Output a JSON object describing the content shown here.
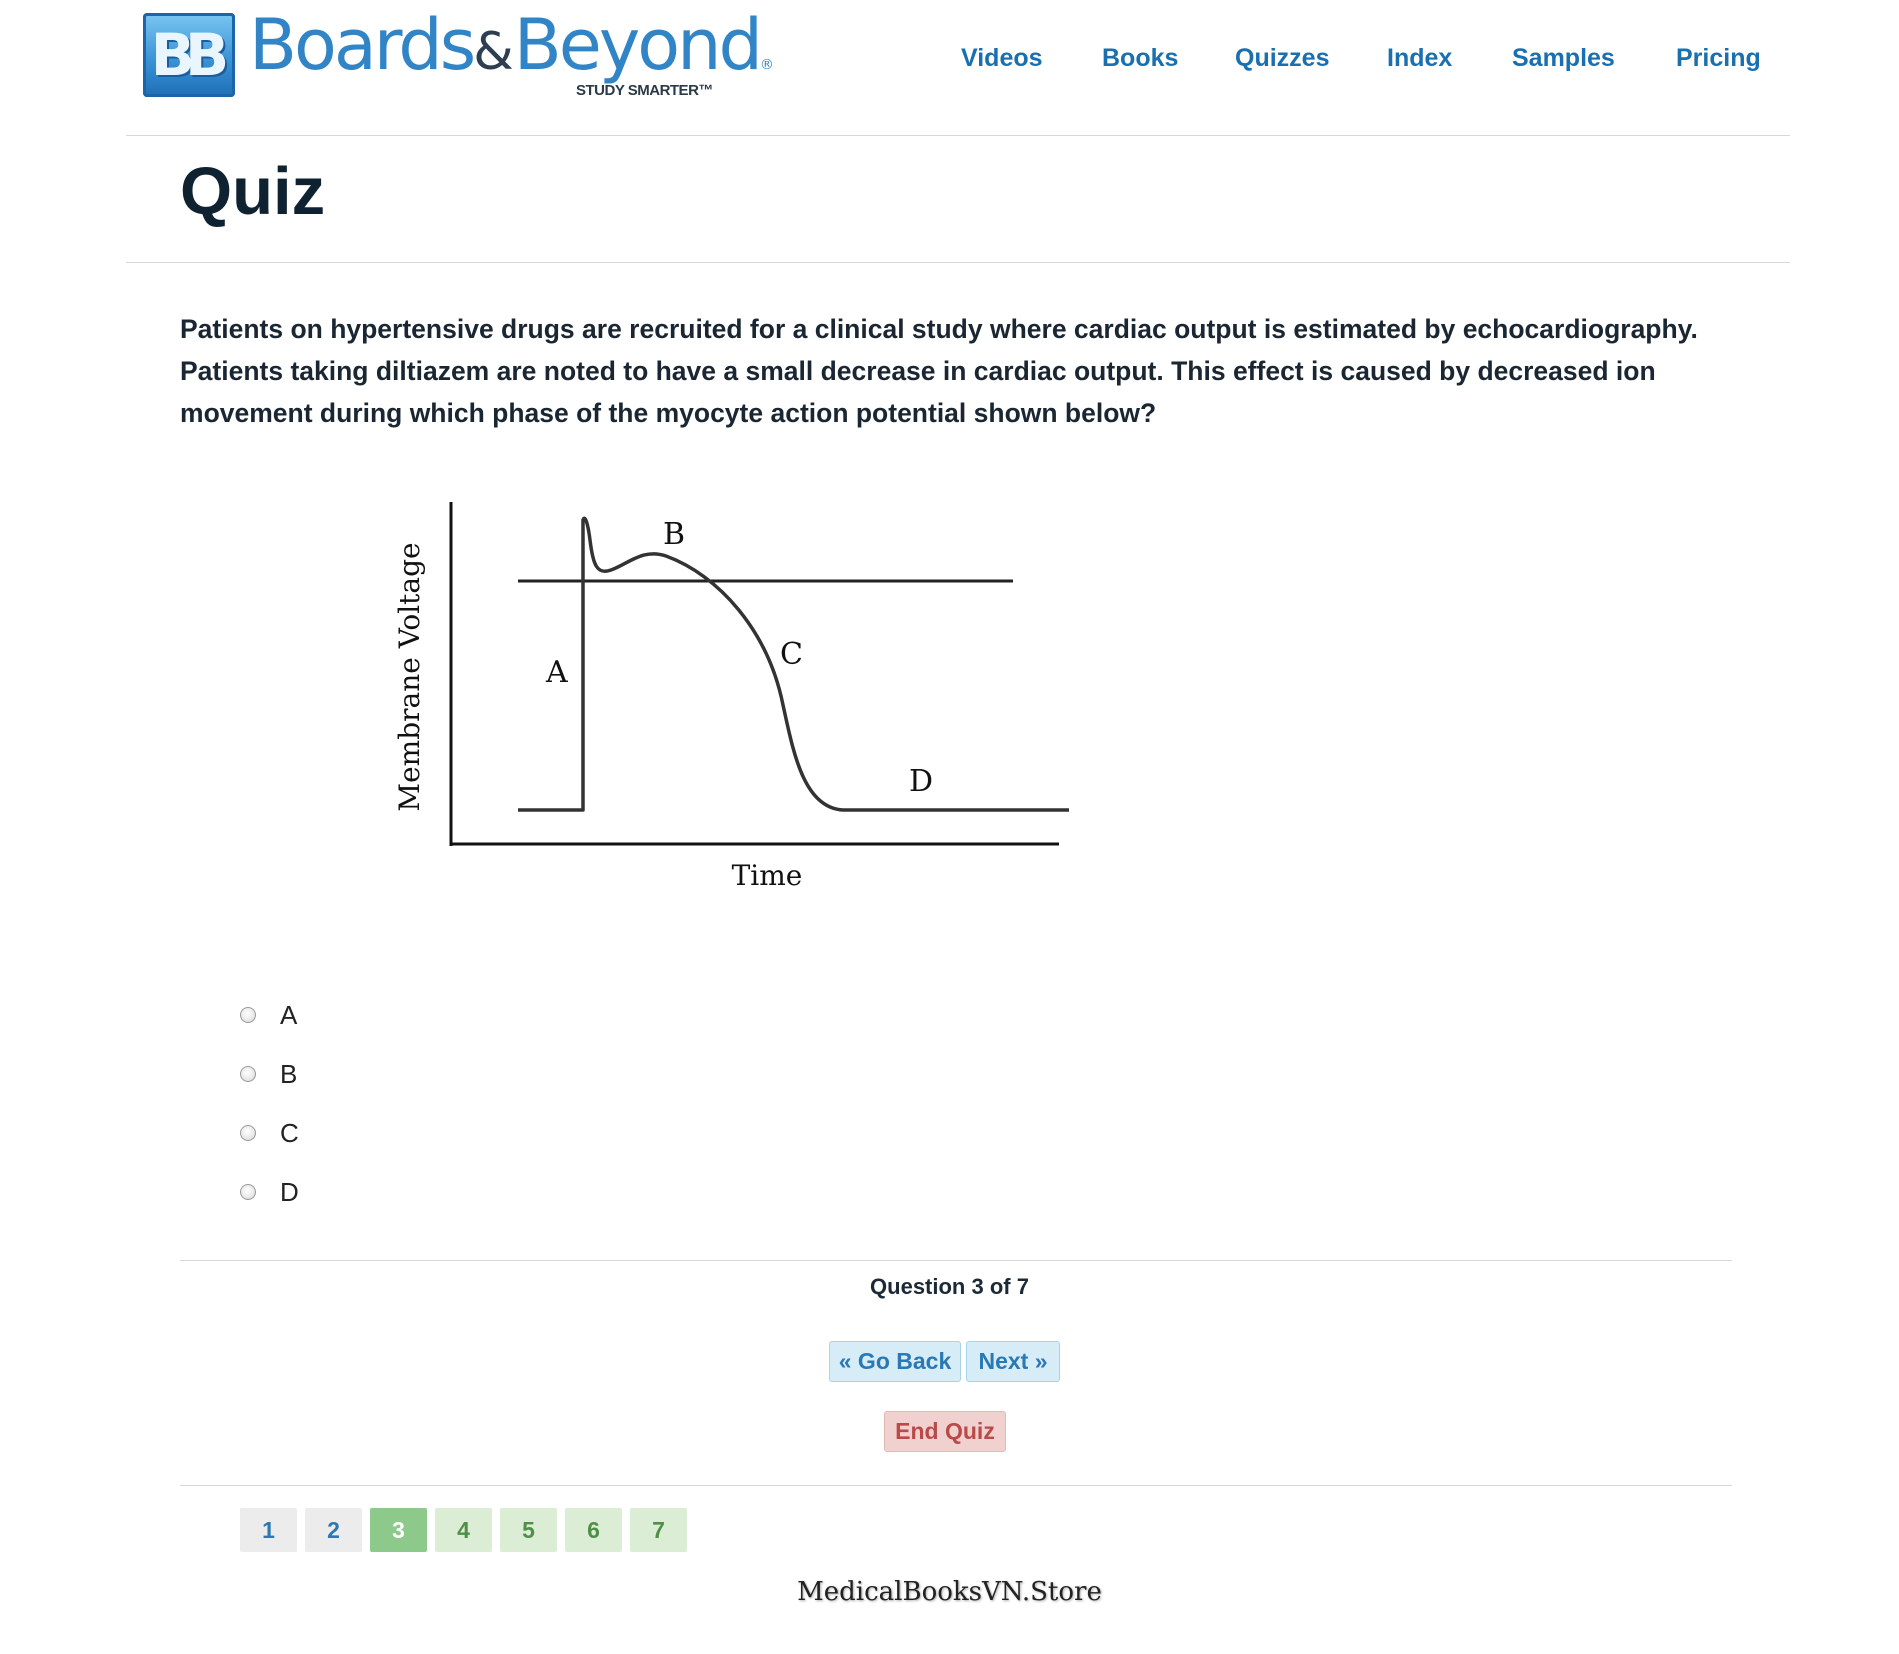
{
  "header": {
    "logo_mark": "BB",
    "logo_word1": "Boards",
    "logo_amp": "&",
    "logo_word2": "Beyond",
    "logo_reg": "®",
    "logo_tagline": "STUDY SMARTER™",
    "nav": [
      "Videos",
      "Books",
      "Quizzes",
      "Index",
      "Samples",
      "Pricing"
    ]
  },
  "page_title": "Quiz",
  "question": {
    "text": "Patients on hypertensive drugs are recruited for a clinical study where cardiac output is estimated by echocardiography. Patients taking diltiazem are noted to have a small decrease in cardiac output. This effect is caused by decreased ion movement during which phase of the myocyte action potential shown below?",
    "figure": {
      "y_label": "Membrane Voltage",
      "x_label": "Time",
      "phase_labels": [
        "A",
        "B",
        "C",
        "D"
      ]
    },
    "options": [
      "A",
      "B",
      "C",
      "D"
    ]
  },
  "navigation": {
    "counter": "Question 3 of 7",
    "back_label": "« Go Back",
    "next_label": "Next »",
    "end_label": "End Quiz",
    "current_page": 3,
    "pages": [
      "1",
      "2",
      "3",
      "4",
      "5",
      "6",
      "7"
    ]
  },
  "watermark": "MedicalBooksVN.Store",
  "colors": {
    "link_blue": "#1a6fb0",
    "brand_blue": "#3185c6",
    "active_page": "#8cc98a",
    "end_quiz_red": "#b94a48"
  }
}
